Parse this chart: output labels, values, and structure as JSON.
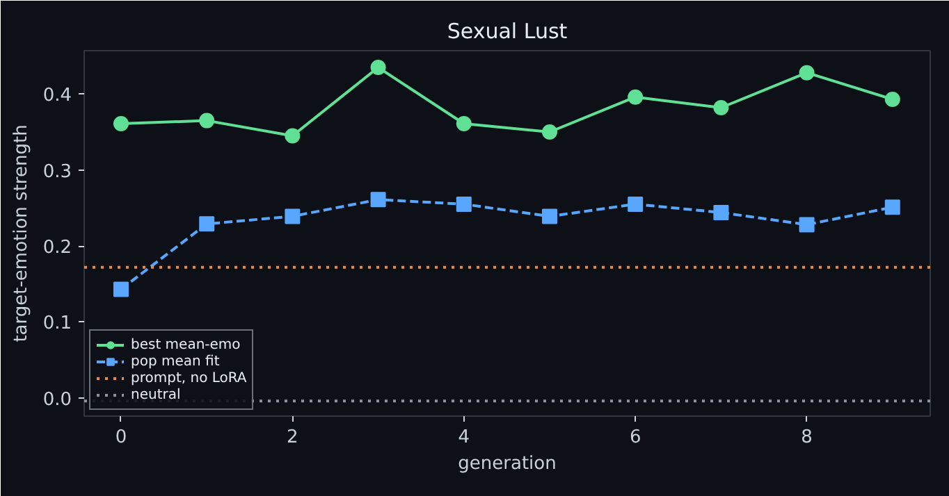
{
  "chart_data": {
    "type": "line",
    "title": "Sexual Lust",
    "xlabel": "generation",
    "ylabel": "target-emotion strength",
    "x": [
      0,
      1,
      2,
      3,
      4,
      5,
      6,
      7,
      8,
      9
    ],
    "series": [
      {
        "name": "best mean-emo",
        "color": "#5fe095",
        "values": [
          0.361,
          0.365,
          0.345,
          0.435,
          0.361,
          0.35,
          0.396,
          0.382,
          0.428,
          0.393
        ],
        "marker": "circle",
        "line_style": "solid"
      },
      {
        "name": "pop mean fit",
        "color": "#58a6ff",
        "values": [
          0.143,
          0.229,
          0.239,
          0.261,
          0.255,
          0.239,
          0.255,
          0.244,
          0.228,
          0.251
        ],
        "marker": "square",
        "line_style": "dashed"
      }
    ],
    "ref_lines": [
      {
        "axis": "y",
        "value": 0.172,
        "label": "prompt, no LoRA",
        "color": "#f0883e",
        "line_style": "dotted"
      },
      {
        "axis": "y",
        "value": -0.004,
        "label": "neutral",
        "color": "#8b949e",
        "line_style": "dotted"
      }
    ],
    "xlim": [
      -0.43,
      9.44
    ],
    "ylim": [
      -0.024,
      0.457
    ],
    "xticks": [
      0,
      2,
      4,
      6,
      8
    ],
    "yticks": [
      {
        "value": 0,
        "label": "0.0"
      },
      {
        "value": 0.1,
        "label": "0.1"
      },
      {
        "value": 0.2,
        "label": "0.2"
      },
      {
        "value": 0.3,
        "label": "0.3"
      },
      {
        "value": 0.4,
        "label": "0.4"
      }
    ],
    "grid": false,
    "legend": "bottom left"
  }
}
